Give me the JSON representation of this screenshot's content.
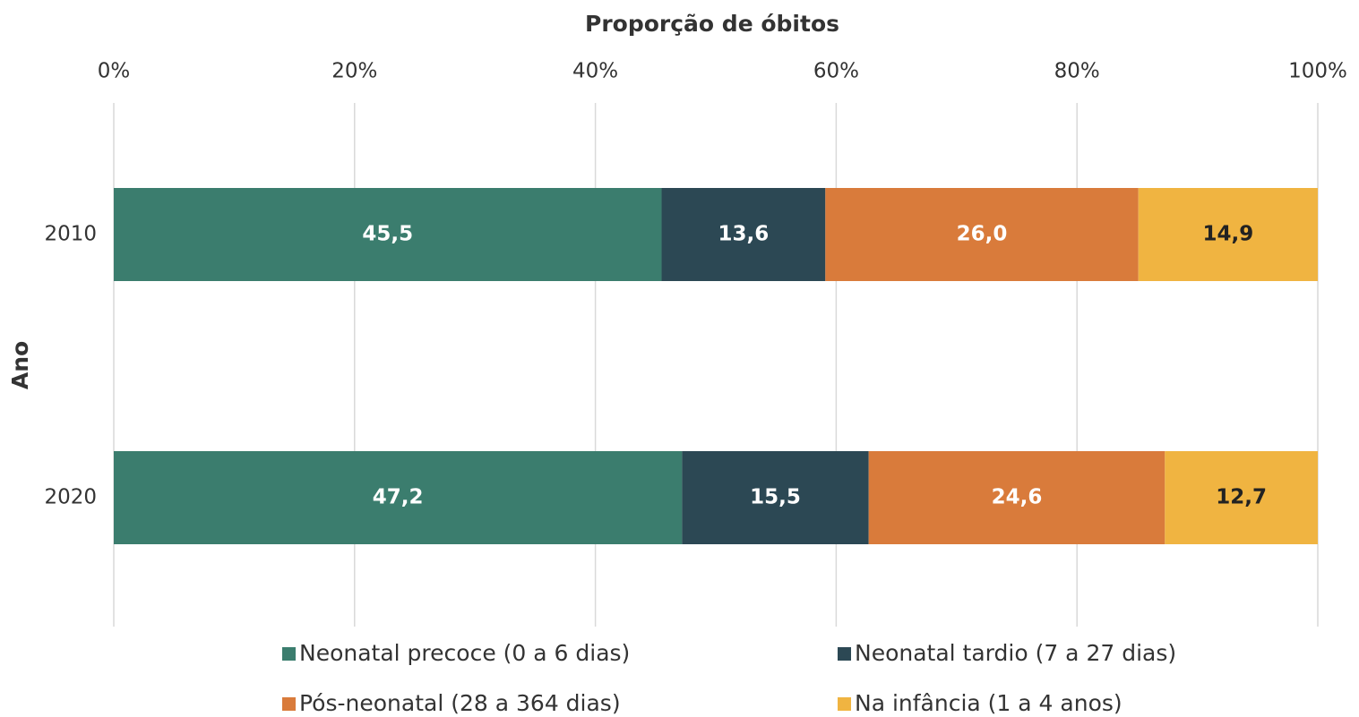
{
  "chart_data": {
    "type": "stacked_barh",
    "x_label": "Proporção de óbitos",
    "y_label": "Ano",
    "categories": [
      "2010",
      "2020"
    ],
    "series": [
      {
        "name": "Neonatal precoce (0 a 6 dias)",
        "color": "#3b7d6e",
        "values": [
          45.5,
          47.2
        ],
        "value_labels": [
          "45,5",
          "47,2"
        ]
      },
      {
        "name": "Neonatal tardio (7 a 27 dias)",
        "color": "#2c4854",
        "values": [
          13.6,
          15.5
        ],
        "value_labels": [
          "13,6",
          "15,5"
        ]
      },
      {
        "name": "Pós-neonatal (28 a 364 dias)",
        "color": "#d97b3b",
        "values": [
          26.0,
          24.6
        ],
        "value_labels": [
          "26,0",
          "24,6"
        ]
      },
      {
        "name": "Na infância (1 a 4 anos)",
        "color": "#f0b441",
        "values": [
          14.9,
          12.7
        ],
        "value_labels": [
          "14,9",
          "12,7"
        ]
      }
    ],
    "xlim": [
      0,
      100
    ],
    "xticks": [
      {
        "value": 0,
        "label": "0%"
      },
      {
        "value": 20,
        "label": "20%"
      },
      {
        "value": 40,
        "label": "40%"
      },
      {
        "value": 60,
        "label": "60%"
      },
      {
        "value": 80,
        "label": "80%"
      },
      {
        "value": 100,
        "label": "100%"
      }
    ],
    "grid": true,
    "legend": "bottom"
  }
}
